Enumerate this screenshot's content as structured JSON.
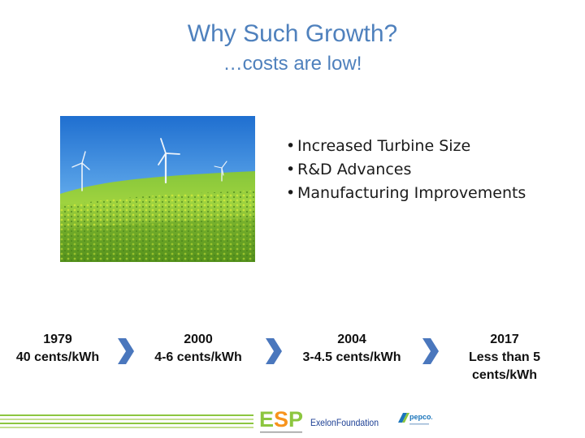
{
  "slide": {
    "title": "Why Such Growth?",
    "subtitle": "…costs are low!"
  },
  "photo": {
    "subject": "wind turbines above a green crop field under blue sky"
  },
  "bullets": [
    "Increased Turbine Size",
    "R&D Advances",
    "Manufacturing Improvements"
  ],
  "timeline": [
    {
      "year": "1979",
      "cost": "40 cents/kWh"
    },
    {
      "year": "2000",
      "cost": "4-6 cents/kWh"
    },
    {
      "year": "2004",
      "cost": "3-4.5 cents/kWh"
    },
    {
      "year": "2017",
      "cost": "Less than 5 cents/kWh"
    }
  ],
  "footer": {
    "logos": {
      "esp": "ESP",
      "exelon": "ExelonFoundation",
      "pepco": "pepco."
    }
  },
  "colors": {
    "accent": "#4f81bd",
    "chevron": "#4a77bd",
    "footer_green": "#8cc63f",
    "esp_green": "#8cc63f",
    "esp_orange": "#f7941d",
    "exelon_blue": "#1c3f94",
    "pepco_blue": "#1b75bb"
  }
}
